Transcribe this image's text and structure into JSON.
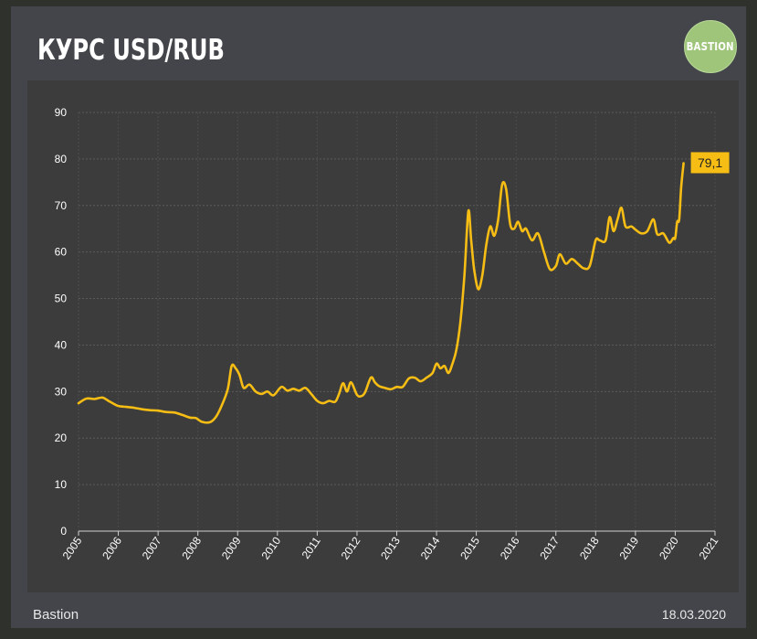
{
  "header": {
    "title": "КУРС USD/RUB",
    "logo_text": "BASTION"
  },
  "footer": {
    "source": "Bastion",
    "date": "18.03.2020"
  },
  "colors": {
    "line": "#f6bd14",
    "label_bg": "#f6bd14",
    "logo": "#9fc57a",
    "grid": "#5a5a5a"
  },
  "chart_data": {
    "type": "line",
    "title": "КУРС USD/RUB",
    "xlabel": "",
    "ylabel": "",
    "xlim": [
      2005,
      2021
    ],
    "ylim": [
      0,
      90
    ],
    "yticks": [
      0,
      10,
      20,
      30,
      40,
      50,
      60,
      70,
      80,
      90
    ],
    "xticks": [
      "2005",
      "2006",
      "2007",
      "2008",
      "2009",
      "2010",
      "2011",
      "2012",
      "2013",
      "2014",
      "2015",
      "2016",
      "2017",
      "2018",
      "2019",
      "2020",
      "2021"
    ],
    "grid": true,
    "legend": "none",
    "last_value_label": "79,1",
    "series": [
      {
        "x": [
          2005.0,
          2005.2,
          2005.4,
          2005.6,
          2005.75,
          2005.9,
          2006.0,
          2006.2,
          2006.4,
          2006.6,
          2006.8,
          2007.0,
          2007.2,
          2007.4,
          2007.6,
          2007.8,
          2007.95,
          2008.1,
          2008.3,
          2008.45,
          2008.6,
          2008.75,
          2008.85,
          2008.95,
          2009.05,
          2009.15,
          2009.3,
          2009.45,
          2009.6,
          2009.75,
          2009.9,
          2010.1,
          2010.25,
          2010.4,
          2010.55,
          2010.7,
          2010.85,
          2011.0,
          2011.15,
          2011.3,
          2011.45,
          2011.55,
          2011.65,
          2011.75,
          2011.85,
          2012.0,
          2012.1,
          2012.2,
          2012.35,
          2012.45,
          2012.55,
          2012.7,
          2012.85,
          2013.0,
          2013.15,
          2013.3,
          2013.45,
          2013.6,
          2013.75,
          2013.9,
          2014.0,
          2014.1,
          2014.2,
          2014.3,
          2014.4,
          2014.5,
          2014.6,
          2014.7,
          2014.8,
          2014.87,
          2014.95,
          2015.05,
          2015.15,
          2015.25,
          2015.35,
          2015.45,
          2015.55,
          2015.65,
          2015.75,
          2015.85,
          2015.95,
          2016.05,
          2016.15,
          2016.25,
          2016.4,
          2016.55,
          2016.7,
          2016.85,
          2017.0,
          2017.1,
          2017.25,
          2017.4,
          2017.55,
          2017.7,
          2017.85,
          2018.0,
          2018.1,
          2018.25,
          2018.35,
          2018.45,
          2018.55,
          2018.65,
          2018.75,
          2018.9,
          2019.0,
          2019.15,
          2019.3,
          2019.45,
          2019.55,
          2019.7,
          2019.85,
          2019.95,
          2020.0,
          2020.05,
          2020.1,
          2020.15,
          2020.21
        ],
        "values": [
          27.5,
          28.5,
          28.4,
          28.7,
          28.0,
          27.3,
          26.9,
          26.7,
          26.5,
          26.2,
          26.0,
          25.9,
          25.6,
          25.5,
          25.0,
          24.4,
          24.3,
          23.5,
          23.4,
          24.5,
          27.0,
          30.5,
          35.5,
          35.0,
          33.5,
          30.8,
          31.5,
          30.0,
          29.5,
          30.0,
          29.2,
          31.0,
          30.2,
          30.6,
          30.2,
          30.8,
          29.5,
          28.0,
          27.5,
          28.0,
          27.8,
          29.5,
          31.8,
          30.0,
          32.0,
          29.3,
          29.0,
          29.8,
          33.0,
          32.0,
          31.2,
          30.8,
          30.5,
          31.0,
          31.0,
          32.8,
          33.0,
          32.2,
          33.0,
          34.0,
          36.0,
          35.0,
          35.5,
          34.0,
          36.0,
          39.0,
          45.0,
          55.0,
          68.8,
          62.5,
          56.0,
          52.0,
          55.0,
          61.5,
          65.5,
          63.5,
          67.0,
          74.5,
          73.5,
          66.0,
          65.0,
          66.5,
          64.5,
          65.0,
          62.5,
          64.0,
          60.0,
          56.3,
          57.0,
          59.5,
          57.5,
          58.5,
          57.5,
          56.5,
          57.0,
          62.5,
          62.5,
          62.5,
          67.5,
          64.5,
          67.0,
          69.5,
          65.5,
          65.5,
          64.8,
          64.0,
          64.5,
          67.0,
          63.8,
          64.0,
          62.0,
          63.0,
          63.0,
          66.5,
          67.0,
          74.0,
          79.1
        ]
      }
    ]
  }
}
